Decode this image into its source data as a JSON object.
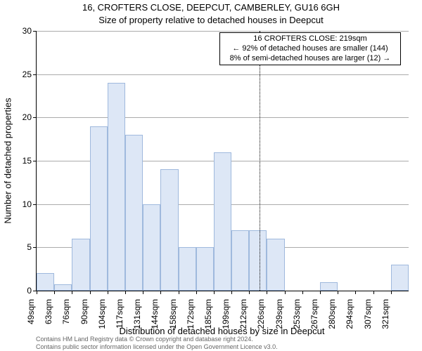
{
  "title_line1": "16, CROFTERS CLOSE, DEEPCUT, CAMBERLEY, GU16 6GH",
  "title_line2": "Size of property relative to detached houses in Deepcut",
  "y_axis_label": "Number of detached properties",
  "x_axis_label": "Distribution of detached houses by size in Deepcut",
  "chart": {
    "type": "histogram",
    "ylim": [
      0,
      30
    ],
    "ytick_step": 5,
    "x_tick_labels": [
      "49sqm",
      "63sqm",
      "76sqm",
      "90sqm",
      "104sqm",
      "117sqm",
      "131sqm",
      "144sqm",
      "158sqm",
      "172sqm",
      "185sqm",
      "199sqm",
      "212sqm",
      "226sqm",
      "239sqm",
      "253sqm",
      "267sqm",
      "280sqm",
      "294sqm",
      "307sqm",
      "321sqm"
    ],
    "bar_fill": "#dde7f6",
    "bar_stroke": "#9fb9dd",
    "grid_color": "#888888",
    "background_color": "#ffffff",
    "bars": [
      {
        "h": 2
      },
      {
        "h": 0.7
      },
      {
        "h": 6
      },
      {
        "h": 19
      },
      {
        "h": 24
      },
      {
        "h": 18
      },
      {
        "h": 10
      },
      {
        "h": 14
      },
      {
        "h": 5
      },
      {
        "h": 5
      },
      {
        "h": 16
      },
      {
        "h": 7
      },
      {
        "h": 7
      },
      {
        "h": 6
      },
      {
        "h": 0
      },
      {
        "h": 0
      },
      {
        "h": 1
      },
      {
        "h": 0
      },
      {
        "h": 0
      },
      {
        "h": 0
      },
      {
        "h": 3
      }
    ],
    "marker_vline_at_bin": 12.6,
    "axis_fontsize": 12,
    "label_fontsize": 13
  },
  "annotation": {
    "line1": "16 CROFTERS CLOSE: 219sqm",
    "line2": "← 92% of detached houses are smaller (144)",
    "line3": "8% of semi-detached houses are larger (12) →"
  },
  "footer": {
    "line1": "Contains HM Land Registry data © Crown copyright and database right 2024.",
    "line2": "Contains public sector information licensed under the Open Government Licence v3.0."
  }
}
